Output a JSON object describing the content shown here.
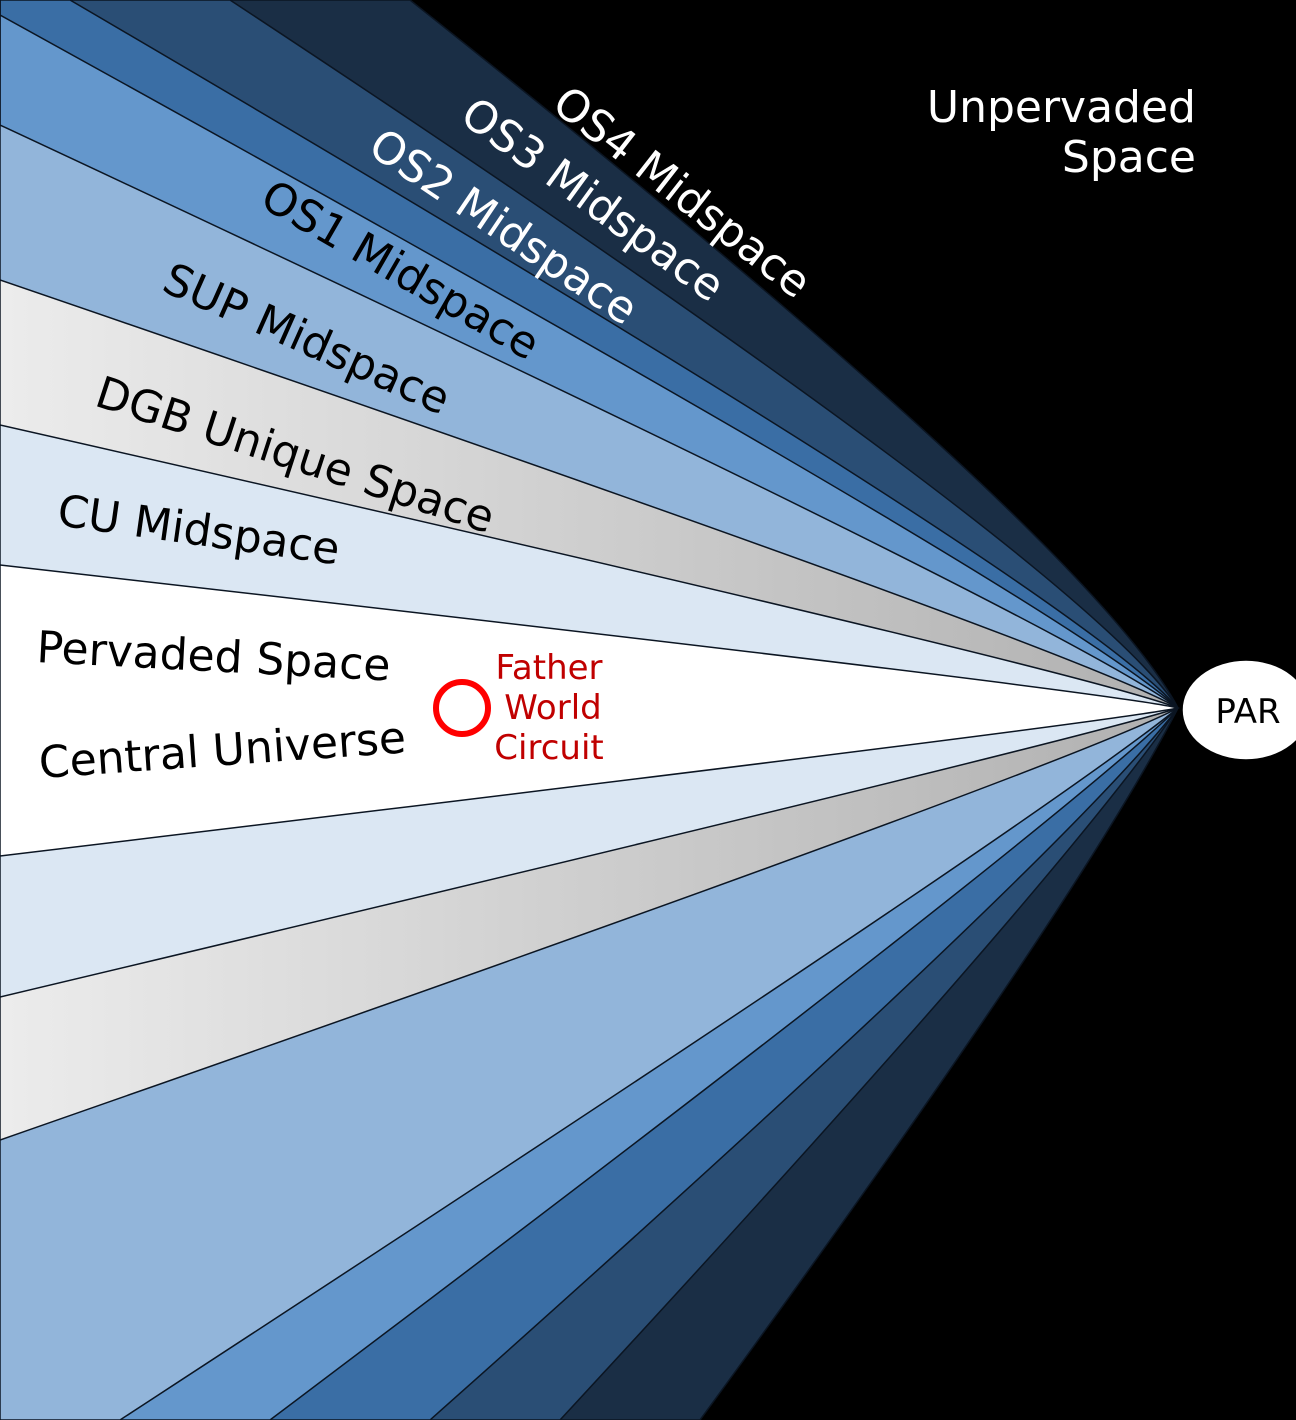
{
  "labels": {
    "unpervaded_line1": "Unpervaded",
    "unpervaded_line2": "Space",
    "os4": "OS4 Midspace",
    "os3": "OS3 Midspace",
    "os2": "OS2 Midspace",
    "os1": "OS1 Midspace",
    "sup": "SUP Midspace",
    "dgb": "DGB Unique Space",
    "cu": "CU Midspace",
    "pervaded": "Pervaded Space",
    "central": "Central Universe",
    "father_line1": "Father",
    "father_line2": "World",
    "father_line3": "Circuit",
    "par": "PAR"
  },
  "colors": {
    "background": "#000000",
    "os4": "#1a2e45",
    "os3": "#2a4e75",
    "os2": "#3a6ea5",
    "os1": "#6497cc",
    "sup": "#92b5da",
    "dgb_light": "#ececec",
    "dgb_dark": "#b0b0b0",
    "cu": "#dbe7f3",
    "central": "#ffffff",
    "father_circuit": "#ff0000",
    "father_text": "#c00000",
    "white_text": "#ffffff",
    "dark_text": "#000000"
  }
}
